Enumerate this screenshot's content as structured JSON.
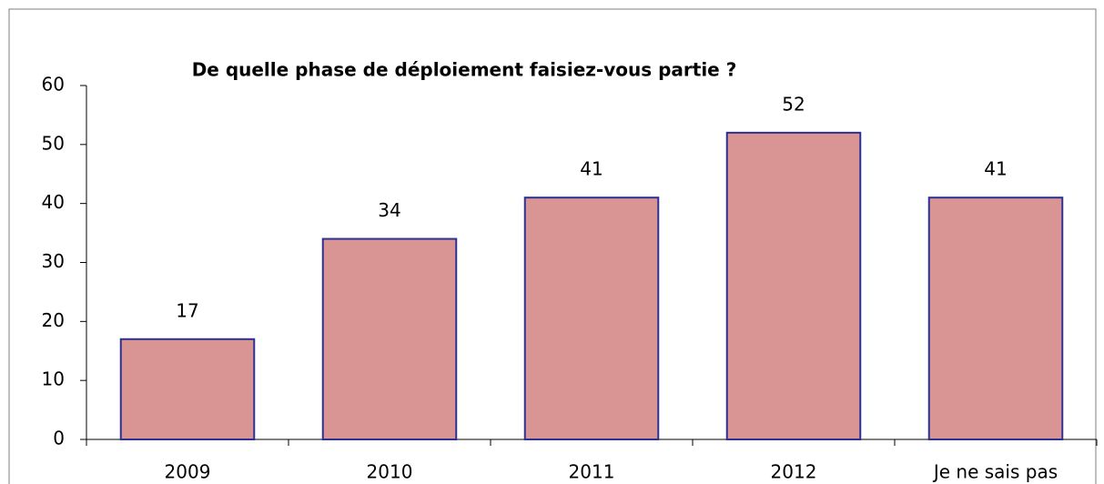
{
  "chart_data": {
    "type": "bar",
    "title": "De quelle phase de déploiement faisiez-vous partie ?",
    "categories": [
      "2009",
      "2010",
      "2011",
      "2012",
      "Je ne sais pas"
    ],
    "values": [
      17,
      34,
      41,
      52,
      41
    ],
    "color": "#d99594",
    "edge_color": "#2e3192",
    "ylim": [
      0,
      60
    ],
    "yticks": [
      0,
      10,
      20,
      30,
      40,
      50,
      60
    ],
    "grid": false,
    "data_labels": true
  }
}
